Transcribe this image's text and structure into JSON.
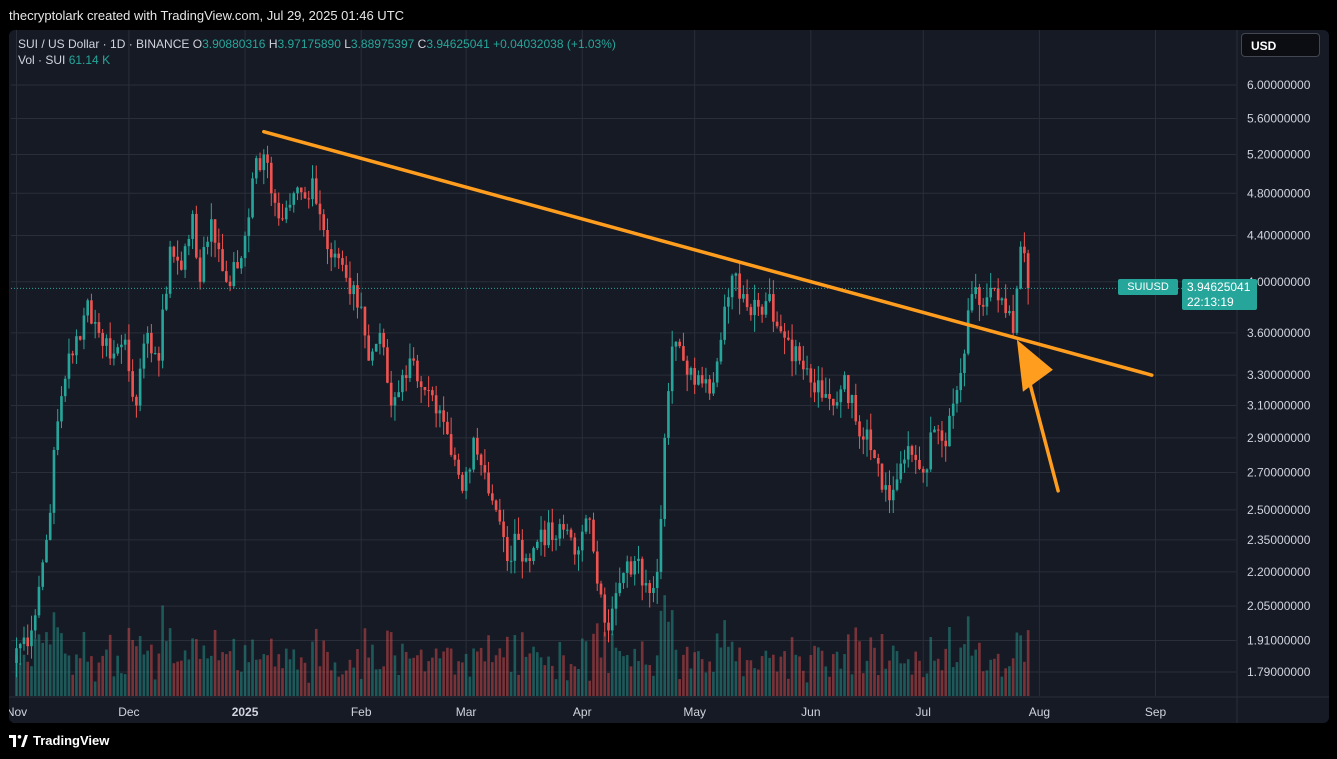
{
  "header": {
    "credit": "thecryptolark created with TradingView.com, Jul 29, 2025 01:46 UTC"
  },
  "legend": {
    "symbol": "SUI / US Dollar · 1D · BINANCE",
    "o_label": "O",
    "o_value": "3.90880316",
    "h_label": "H",
    "h_value": "3.97175890",
    "l_label": "L",
    "l_value": "3.88975397",
    "c_label": "C",
    "c_value": "3.94625041",
    "change": "+0.04032038 (+1.03%)",
    "vol_label": "Vol · SUI",
    "vol_value": "61.14 K"
  },
  "currency_button": "USD",
  "price_tag": {
    "symbol": "SUIUSD",
    "price": "3.94625041",
    "countdown": "22:13:19"
  },
  "footer": {
    "brand": "TradingView"
  },
  "colors": {
    "background": "#161a25",
    "grid": "#2a2e39",
    "up": "#26a69a",
    "down": "#ef5350",
    "trendline": "#ff9d1f",
    "axis_text": "#d1d4dc"
  },
  "chart_data": {
    "type": "candlestick",
    "symbol": "SUI / US Dollar",
    "interval": "1D",
    "exchange": "BINANCE",
    "y_scale": "log",
    "y_ticks": [
      "6.00000000",
      "5.60000000",
      "5.20000000",
      "4.80000000",
      "4.40000000",
      "4.00000000",
      "3.60000000",
      "3.30000000",
      "3.10000000",
      "2.90000000",
      "2.70000000",
      "2.50000000",
      "2.35000000",
      "2.20000000",
      "2.05000000",
      "1.91000000",
      "1.79000000"
    ],
    "x_ticks": [
      "Nov",
      "Dec",
      "2025",
      "Feb",
      "Mar",
      "Apr",
      "May",
      "Jun",
      "Jul",
      "Aug",
      "Sep"
    ],
    "x_range": [
      "2024-10-30",
      "2025-09-11"
    ],
    "last_price": 3.94625041,
    "price_path": [
      [
        "2024-11-01",
        1.88
      ],
      [
        "2024-11-05",
        1.95
      ],
      [
        "2024-11-09",
        2.35
      ],
      [
        "2024-11-12",
        3.0
      ],
      [
        "2024-11-15",
        3.45
      ],
      [
        "2024-11-18",
        3.55
      ],
      [
        "2024-11-20",
        3.85
      ],
      [
        "2024-11-23",
        3.6
      ],
      [
        "2024-11-27",
        3.45
      ],
      [
        "2024-11-30",
        3.55
      ],
      [
        "2024-12-03",
        3.1
      ],
      [
        "2024-12-06",
        3.6
      ],
      [
        "2024-12-09",
        3.4
      ],
      [
        "2024-12-12",
        4.3
      ],
      [
        "2024-12-15",
        4.1
      ],
      [
        "2024-12-18",
        4.6
      ],
      [
        "2024-12-20",
        4.0
      ],
      [
        "2024-12-23",
        4.55
      ],
      [
        "2024-12-27",
        4.0
      ],
      [
        "2024-12-31",
        4.2
      ],
      [
        "2025-01-03",
        4.95
      ],
      [
        "2025-01-06",
        5.2
      ],
      [
        "2025-01-08",
        4.8
      ],
      [
        "2025-01-11",
        4.55
      ],
      [
        "2025-01-14",
        4.8
      ],
      [
        "2025-01-17",
        4.75
      ],
      [
        "2025-01-19",
        4.95
      ],
      [
        "2025-01-22",
        4.45
      ],
      [
        "2025-01-26",
        4.2
      ],
      [
        "2025-01-29",
        3.9
      ],
      [
        "2025-02-01",
        3.8
      ],
      [
        "2025-02-03",
        3.4
      ],
      [
        "2025-02-06",
        3.6
      ],
      [
        "2025-02-09",
        3.1
      ],
      [
        "2025-02-12",
        3.3
      ],
      [
        "2025-02-15",
        3.4
      ],
      [
        "2025-02-18",
        3.2
      ],
      [
        "2025-02-21",
        3.05
      ],
      [
        "2025-02-25",
        2.8
      ],
      [
        "2025-02-28",
        2.6
      ],
      [
        "2025-03-03",
        2.9
      ],
      [
        "2025-03-06",
        2.7
      ],
      [
        "2025-03-09",
        2.5
      ],
      [
        "2025-03-12",
        2.25
      ],
      [
        "2025-03-15",
        2.35
      ],
      [
        "2025-03-18",
        2.25
      ],
      [
        "2025-03-21",
        2.4
      ],
      [
        "2025-03-24",
        2.35
      ],
      [
        "2025-03-28",
        2.4
      ],
      [
        "2025-03-31",
        2.3
      ],
      [
        "2025-04-03",
        2.45
      ],
      [
        "2025-04-06",
        2.1
      ],
      [
        "2025-04-08",
        1.95
      ],
      [
        "2025-04-11",
        2.15
      ],
      [
        "2025-04-15",
        2.25
      ],
      [
        "2025-04-18",
        2.15
      ],
      [
        "2025-04-21",
        2.2
      ],
      [
        "2025-04-23",
        2.9
      ],
      [
        "2025-04-25",
        3.5
      ],
      [
        "2025-04-28",
        3.4
      ],
      [
        "2025-05-02",
        3.3
      ],
      [
        "2025-05-06",
        3.25
      ],
      [
        "2025-05-09",
        3.8
      ],
      [
        "2025-05-11",
        4.05
      ],
      [
        "2025-05-14",
        3.9
      ],
      [
        "2025-05-18",
        3.8
      ],
      [
        "2025-05-21",
        3.9
      ],
      [
        "2025-05-23",
        3.65
      ],
      [
        "2025-05-26",
        3.55
      ],
      [
        "2025-05-29",
        3.4
      ],
      [
        "2025-06-01",
        3.25
      ],
      [
        "2025-06-04",
        3.15
      ],
      [
        "2025-06-07",
        3.1
      ],
      [
        "2025-06-10",
        3.3
      ],
      [
        "2025-06-13",
        3.0
      ],
      [
        "2025-06-16",
        2.95
      ],
      [
        "2025-06-19",
        2.75
      ],
      [
        "2025-06-22",
        2.55
      ],
      [
        "2025-06-25",
        2.75
      ],
      [
        "2025-06-28",
        2.8
      ],
      [
        "2025-07-01",
        2.7
      ],
      [
        "2025-07-04",
        2.95
      ],
      [
        "2025-07-07",
        2.85
      ],
      [
        "2025-07-10",
        3.2
      ],
      [
        "2025-07-12",
        3.45
      ],
      [
        "2025-07-14",
        3.9
      ],
      [
        "2025-07-17",
        3.8
      ],
      [
        "2025-07-19",
        3.95
      ],
      [
        "2025-07-21",
        3.85
      ],
      [
        "2025-07-23",
        3.75
      ],
      [
        "2025-07-25",
        3.6
      ],
      [
        "2025-07-27",
        4.3
      ],
      [
        "2025-07-29",
        3.95
      ]
    ],
    "annotations": [
      {
        "type": "trendline",
        "color": "#ff9d1f",
        "from": [
          "2025-01-06",
          5.45
        ],
        "to": [
          "2025-08-31",
          3.3
        ]
      },
      {
        "type": "arrow",
        "color": "#ff9d1f",
        "points_to": [
          "2025-07-26",
          3.55
        ],
        "from": [
          "2025-08-06",
          2.6
        ]
      }
    ]
  }
}
